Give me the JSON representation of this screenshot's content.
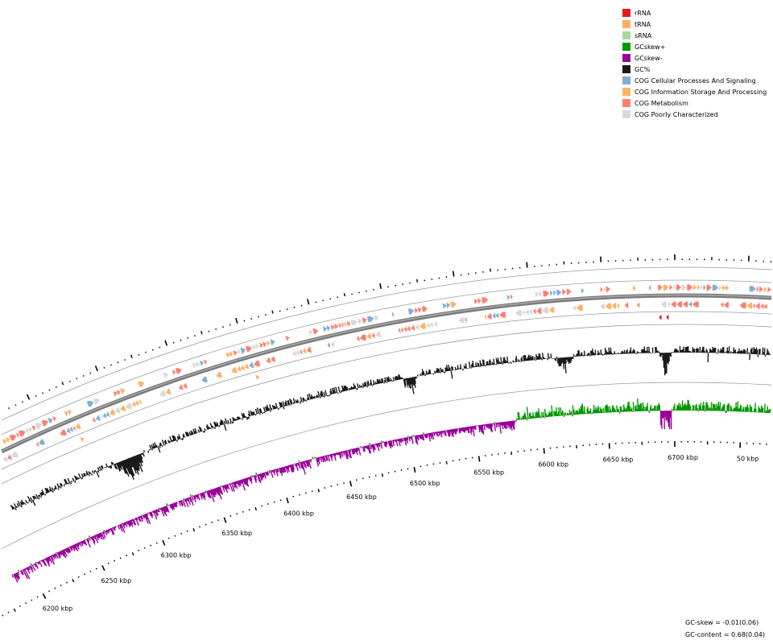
{
  "legend": [
    {
      "label": "rRNA",
      "color": "#e31a1c"
    },
    {
      "label": "tRNA",
      "color": "#fdae61"
    },
    {
      "label": "sRNA",
      "color": "#a6dba0"
    },
    {
      "label": "GCskew+",
      "color": "#009900"
    },
    {
      "label": "GCskew-",
      "color": "#990099"
    },
    {
      "label": "GC%",
      "color": "#1a1a1a"
    },
    {
      "label": "COG Cellular Processes And Signaling",
      "color": "#7fafd6"
    },
    {
      "label": "COG Information Storage And Processing",
      "color": "#fdb462"
    },
    {
      "label": "COG Metabolism",
      "color": "#fb8072"
    },
    {
      "label": "COG Poorly Characterized",
      "color": "#d9d9d9"
    }
  ],
  "scale_ticks": [
    {
      "kbp": 6200,
      "label": "6200 kbp"
    },
    {
      "kbp": 6250,
      "label": "6250 kbp"
    },
    {
      "kbp": 6300,
      "label": "6300 kbp"
    },
    {
      "kbp": 6350,
      "label": "6350 kbp"
    },
    {
      "kbp": 6400,
      "label": "6400 kbp"
    },
    {
      "kbp": 6450,
      "label": "6450 kbp"
    },
    {
      "kbp": 6500,
      "label": "6500 kbp"
    },
    {
      "kbp": 6550,
      "label": "6550 kbp"
    },
    {
      "kbp": 6600,
      "label": "6600 kbp"
    },
    {
      "kbp": 6650,
      "label": "6650 kbp"
    },
    {
      "kbp": 6700,
      "label": "6700 kbp"
    },
    {
      "kbp": 6750,
      "label": "50 kbp"
    }
  ],
  "stats": {
    "gc_skew": "GC-skew = -0.01(0.06)",
    "gc_content": "GC-content = 0.68(0.04)"
  }
}
